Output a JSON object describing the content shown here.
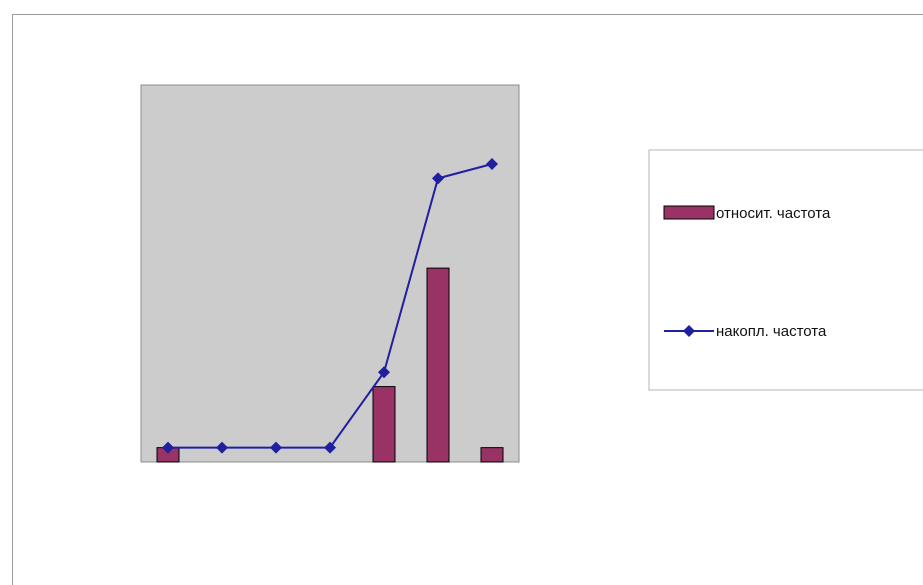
{
  "chart_data": {
    "type": "bar+line",
    "title": "",
    "xlabel": "",
    "ylabel": "",
    "categories_count": 7,
    "ylim": [
      0,
      1.05
    ],
    "grid": false,
    "plot_background": "#cccccc",
    "legend_position": "right",
    "series": [
      {
        "name": "относит. частота",
        "kind": "bar",
        "color": "#993366",
        "values": [
          0.04,
          0,
          0,
          0,
          0.21,
          0.54,
          0.04
        ]
      },
      {
        "name": "накопл. частота",
        "kind": "line",
        "color": "#1f1fa0",
        "marker": "diamond",
        "values": [
          0.04,
          0.04,
          0.04,
          0.04,
          0.25,
          0.79,
          0.83
        ]
      }
    ]
  },
  "legend": {
    "bar_label": "относит. частота",
    "line_label": "накопл. частота"
  }
}
